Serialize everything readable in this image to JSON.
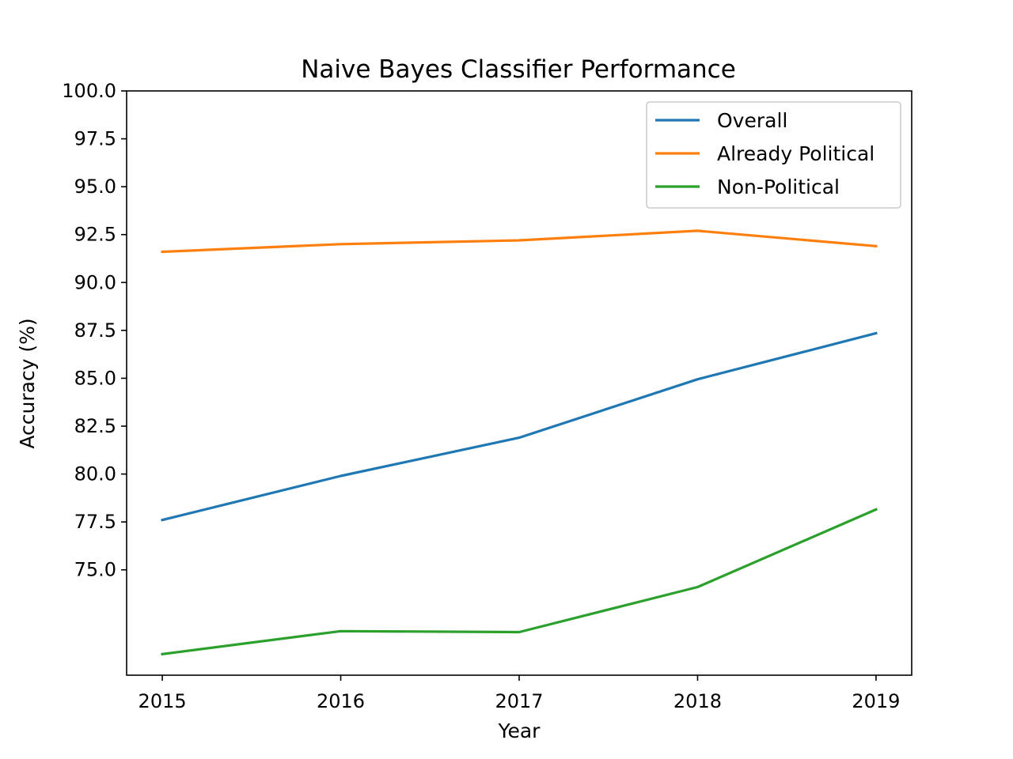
{
  "chart_data": {
    "type": "line",
    "title": "Naive Bayes Classifier Performance",
    "xlabel": "Year",
    "ylabel": "Accuracy (%)",
    "x": [
      2015,
      2016,
      2017,
      2018,
      2019
    ],
    "x_ticks": [
      "2015",
      "2016",
      "2017",
      "2018",
      "2019"
    ],
    "y_ticks": [
      "75.0",
      "77.5",
      "80.0",
      "82.5",
      "85.0",
      "87.5",
      "90.0",
      "92.5",
      "95.0",
      "97.5",
      "100.0"
    ],
    "y_tick_values": [
      75.0,
      77.5,
      80.0,
      82.5,
      85.0,
      87.5,
      90.0,
      92.5,
      95.0,
      97.5,
      100.0
    ],
    "ylim": [
      69.5,
      100.0
    ],
    "xlim": [
      2014.8,
      2019.2
    ],
    "grid": false,
    "legend_position": "top-right",
    "series": [
      {
        "name": "Overall",
        "color": "#1f77b4",
        "values": [
          77.6,
          79.9,
          81.9,
          84.95,
          87.35
        ]
      },
      {
        "name": "Already Political",
        "color": "#ff7f0e",
        "values": [
          91.6,
          92.0,
          92.2,
          92.7,
          91.9
        ]
      },
      {
        "name": "Non-Political",
        "color": "#2ca02c",
        "values": [
          70.6,
          71.8,
          71.75,
          74.1,
          78.15
        ]
      }
    ]
  }
}
